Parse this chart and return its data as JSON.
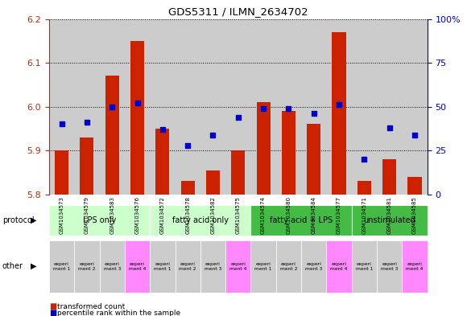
{
  "title": "GDS5311 / ILMN_2634702",
  "samples": [
    "GSM1034573",
    "GSM1034579",
    "GSM1034583",
    "GSM1034576",
    "GSM1034572",
    "GSM1034578",
    "GSM1034582",
    "GSM1034575",
    "GSM1034574",
    "GSM1034580",
    "GSM1034584",
    "GSM1034577",
    "GSM1034571",
    "GSM1034581",
    "GSM1034585"
  ],
  "red_values": [
    5.9,
    5.93,
    6.07,
    6.15,
    5.95,
    5.83,
    5.855,
    5.9,
    6.01,
    5.99,
    5.96,
    6.17,
    5.83,
    5.88,
    5.84
  ],
  "blue_values": [
    40,
    41,
    50,
    52,
    37,
    28,
    34,
    44,
    49,
    49,
    46,
    51,
    20,
    38,
    34
  ],
  "ymin": 5.8,
  "ymax": 6.2,
  "yticks": [
    5.8,
    5.9,
    6.0,
    6.1,
    6.2
  ],
  "y2min": 0,
  "y2max": 100,
  "y2ticks": [
    0,
    25,
    50,
    75,
    100
  ],
  "y2tick_labels": [
    "0",
    "25",
    "50",
    "75",
    "100%"
  ],
  "protocols": [
    {
      "label": "LPS only",
      "start": 0,
      "end": 4,
      "color": "#ccffcc"
    },
    {
      "label": "fatty acid only",
      "start": 4,
      "end": 8,
      "color": "#ccffcc"
    },
    {
      "label": "fatty acid + LPS",
      "start": 8,
      "end": 12,
      "color": "#44bb44"
    },
    {
      "label": "unstimulated",
      "start": 12,
      "end": 15,
      "color": "#44bb44"
    }
  ],
  "experiment_labels": [
    "experi\nment 1",
    "experi\nment 2",
    "experi\nment 3",
    "experi\nment 4",
    "experi\nment 1",
    "experi\nment 2",
    "experi\nment 3",
    "experi\nment 4",
    "experi\nment 1",
    "experi\nment 2",
    "experi\nment 3",
    "experi\nment 4",
    "experi\nment 1",
    "experi\nment 3",
    "experi\nment 4"
  ],
  "experiment_colors": [
    "#cccccc",
    "#cccccc",
    "#cccccc",
    "#ff88ff",
    "#cccccc",
    "#cccccc",
    "#cccccc",
    "#ff88ff",
    "#cccccc",
    "#cccccc",
    "#cccccc",
    "#ff88ff",
    "#cccccc",
    "#cccccc",
    "#ff88ff"
  ],
  "bar_color": "#cc2200",
  "dot_color": "#0000cc",
  "bar_width": 0.55,
  "cell_color": "#cccccc",
  "left_label_color": "#888888"
}
